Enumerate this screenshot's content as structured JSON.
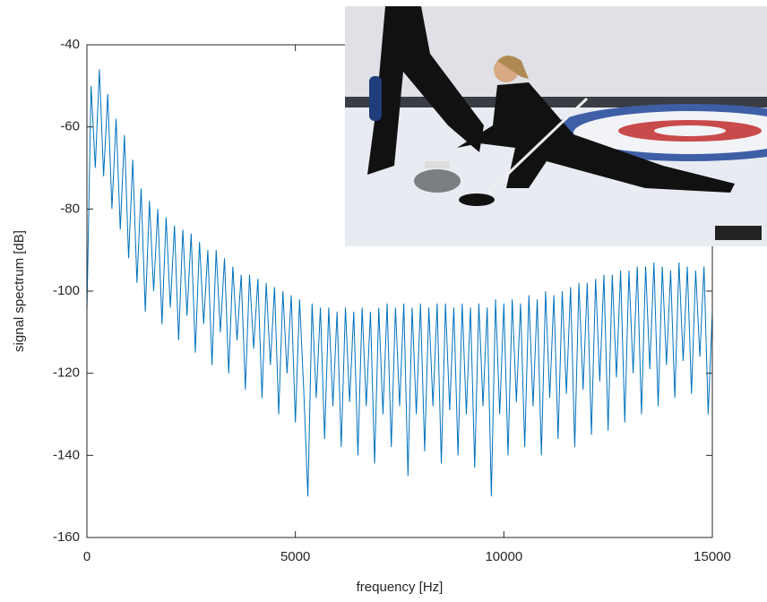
{
  "chart_data": {
    "type": "line",
    "xlabel": "frequency [Hz]",
    "ylabel": "signal spectrum [dB]",
    "x": [
      0,
      100,
      200,
      300,
      400,
      500,
      600,
      700,
      800,
      900,
      1000,
      1100,
      1200,
      1300,
      1400,
      1500,
      1600,
      1700,
      1800,
      1900,
      2000,
      2100,
      2200,
      2300,
      2400,
      2500,
      2600,
      2700,
      2800,
      2900,
      3000,
      3100,
      3200,
      3300,
      3400,
      3500,
      3600,
      3700,
      3800,
      3900,
      4000,
      4100,
      4200,
      4300,
      4400,
      4500,
      4600,
      4700,
      4800,
      4900,
      5000,
      5100,
      5200,
      5300,
      5400,
      5500,
      5600,
      5700,
      5800,
      5900,
      6000,
      6100,
      6200,
      6300,
      6400,
      6500,
      6600,
      6700,
      6800,
      6900,
      7000,
      7100,
      7200,
      7300,
      7400,
      7500,
      7600,
      7700,
      7800,
      7900,
      8000,
      8100,
      8200,
      8300,
      8400,
      8500,
      8600,
      8700,
      8800,
      8900,
      9000,
      9100,
      9200,
      9300,
      9400,
      9500,
      9600,
      9700,
      9800,
      9900,
      10000,
      10100,
      10200,
      10300,
      10400,
      10500,
      10600,
      10700,
      10800,
      10900,
      11000,
      11100,
      11200,
      11300,
      11400,
      11500,
      11600,
      11700,
      11800,
      11900,
      12000,
      12100,
      12200,
      12300,
      12400,
      12500,
      12600,
      12700,
      12800,
      12900,
      13000,
      13100,
      13200,
      13300,
      13400,
      13500,
      13600,
      13700,
      13800,
      13900,
      14000,
      14100,
      14200,
      14300,
      14400,
      14500,
      14600,
      14700,
      14800,
      14900,
      15000
    ],
    "values": [
      -105,
      -50,
      -70,
      -46,
      -72,
      -52,
      -80,
      -58,
      -85,
      -62,
      -92,
      -68,
      -98,
      -75,
      -105,
      -78,
      -100,
      -80,
      -108,
      -82,
      -104,
      -84,
      -112,
      -85,
      -106,
      -86,
      -115,
      -88,
      -108,
      -90,
      -118,
      -90,
      -110,
      -92,
      -120,
      -94,
      -112,
      -96,
      -124,
      -96,
      -114,
      -97,
      -126,
      -98,
      -118,
      -99,
      -130,
      -100,
      -120,
      -101,
      -132,
      -102,
      -124,
      -150,
      -103,
      -126,
      -104,
      -136,
      -104,
      -128,
      -105,
      -138,
      -104,
      -127,
      -105,
      -140,
      -104,
      -128,
      -105,
      -142,
      -104,
      -130,
      -103,
      -138,
      -104,
      -128,
      -103,
      -145,
      -104,
      -130,
      -103,
      -139,
      -104,
      -128,
      -103,
      -142,
      -103,
      -129,
      -104,
      -140,
      -103,
      -130,
      -104,
      -143,
      -103,
      -128,
      -104,
      -150,
      -102,
      -130,
      -103,
      -140,
      -102,
      -127,
      -103,
      -138,
      -101,
      -128,
      -102,
      -140,
      -100,
      -126,
      -101,
      -136,
      -100,
      -125,
      -99,
      -138,
      -98,
      -124,
      -98,
      -135,
      -97,
      -122,
      -96,
      -134,
      -96,
      -121,
      -95,
      -132,
      -95,
      -120,
      -94,
      -130,
      -94,
      -119,
      -93,
      -128,
      -94,
      -118,
      -95,
      -126,
      -93,
      -117,
      -94,
      -125,
      -95,
      -116,
      -94,
      -130,
      -105
    ],
    "color": "#0072BD",
    "xlim": [
      0,
      15000
    ],
    "xticks": [
      0,
      5000,
      10000,
      15000
    ],
    "ylim": [
      -160,
      -40
    ],
    "yticks": [
      -160,
      -140,
      -120,
      -100,
      -80,
      -60,
      -40
    ]
  }
}
